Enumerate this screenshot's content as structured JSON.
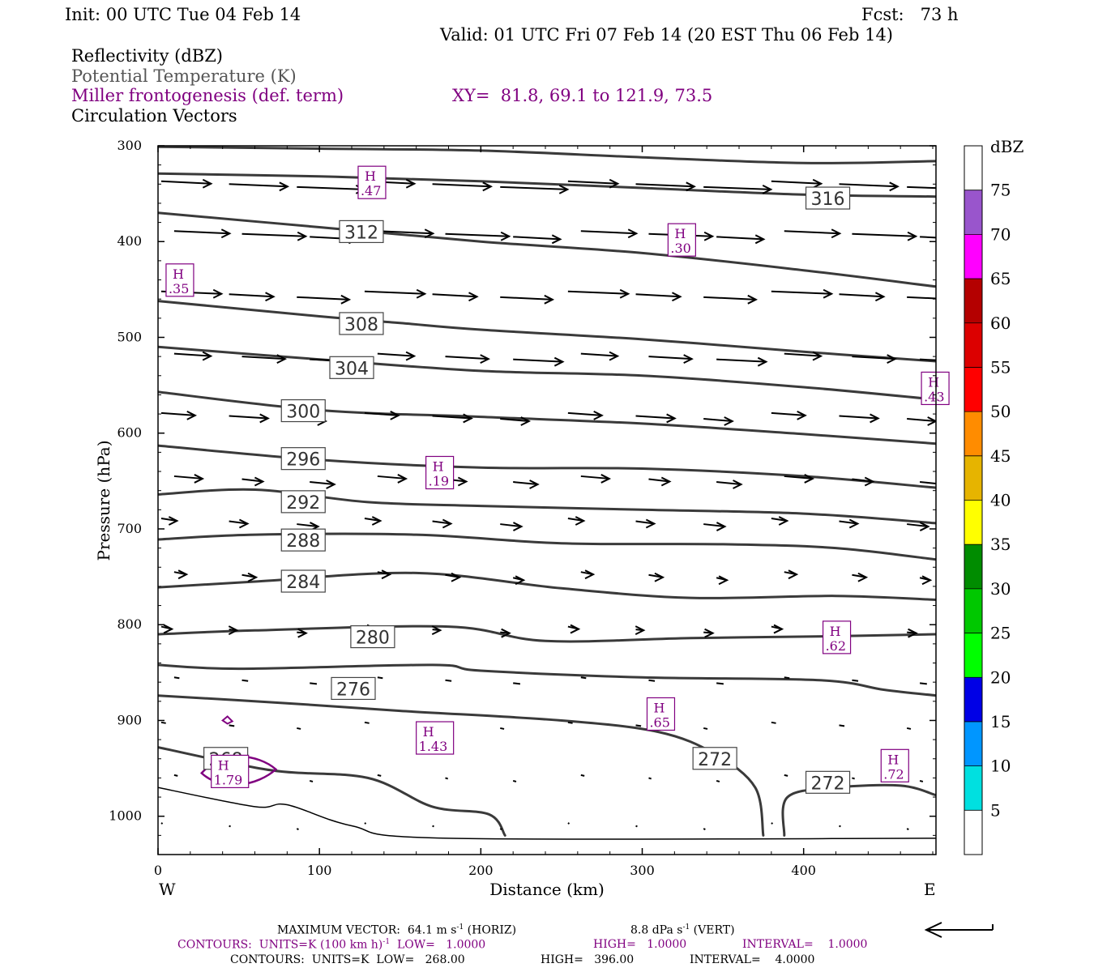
{
  "header": {
    "init": "Init: 00 UTC Tue 04 Feb 14",
    "fcst": "Fcst:   73 h",
    "valid": "Valid: 01 UTC Fri 07 Feb 14 (20 EST Thu 06 Feb 14)",
    "field1": "Reflectivity (dBZ)",
    "field2": "Potential Temperature (K)",
    "field3": "Miller frontogenesis (def. term)",
    "xy": "XY=  81.8, 69.1 to 121.9, 73.5",
    "field4": "Circulation Vectors"
  },
  "colors": {
    "theta": "#3a3a3a",
    "fronto": "#800080",
    "vector": "#000000"
  },
  "chart_data": {
    "type": "contour",
    "xlabel": "Distance (km)",
    "ylabel": "Pressure (hPa)",
    "xlim": [
      0,
      482
    ],
    "ylim": [
      300,
      1040
    ],
    "x_ticks": [
      0,
      100,
      200,
      300,
      400
    ],
    "y_ticks": [
      300,
      400,
      500,
      600,
      700,
      800,
      900,
      1000
    ],
    "west_label": "W",
    "east_label": "E",
    "theta_contours": [
      {
        "value": 316,
        "label": "316",
        "label_at": [
          415,
          355
        ],
        "points": [
          [
            0,
            301
          ],
          [
            100,
            303
          ],
          [
            200,
            305
          ],
          [
            300,
            312
          ],
          [
            400,
            318
          ],
          [
            482,
            316
          ]
        ]
      },
      {
        "value": "",
        "label": "",
        "label_at": null,
        "points": [
          [
            0,
            329
          ],
          [
            100,
            332
          ],
          [
            200,
            337
          ],
          [
            300,
            344
          ],
          [
            400,
            351
          ],
          [
            482,
            353
          ]
        ]
      },
      {
        "value": 312,
        "label": "312",
        "label_at": [
          126,
          390
        ],
        "points": [
          [
            0,
            370
          ],
          [
            100,
            385
          ],
          [
            200,
            400
          ],
          [
            300,
            412
          ],
          [
            400,
            430
          ],
          [
            482,
            447
          ]
        ]
      },
      {
        "value": 308,
        "label": "308",
        "label_at": [
          126,
          486
        ],
        "points": [
          [
            0,
            462
          ],
          [
            100,
            478
          ],
          [
            150,
            485
          ],
          [
            200,
            492
          ],
          [
            300,
            502
          ],
          [
            400,
            515
          ],
          [
            482,
            525
          ]
        ]
      },
      {
        "value": 304,
        "label": "304",
        "label_at": [
          120,
          532
        ],
        "points": [
          [
            0,
            510
          ],
          [
            100,
            523
          ],
          [
            200,
            535
          ],
          [
            300,
            540
          ],
          [
            400,
            552
          ],
          [
            482,
            565
          ]
        ]
      },
      {
        "value": 300,
        "label": "300",
        "label_at": [
          90,
          577
        ],
        "points": [
          [
            0,
            557
          ],
          [
            100,
            576
          ],
          [
            200,
            583
          ],
          [
            300,
            590
          ],
          [
            400,
            601
          ],
          [
            482,
            611
          ]
        ]
      },
      {
        "value": 296,
        "label": "296",
        "label_at": [
          90,
          627
        ],
        "points": [
          [
            0,
            613
          ],
          [
            100,
            628
          ],
          [
            200,
            636
          ],
          [
            300,
            637
          ],
          [
            400,
            645
          ],
          [
            482,
            657
          ]
        ]
      },
      {
        "value": 292,
        "label": "292",
        "label_at": [
          90,
          672
        ],
        "points": [
          [
            0,
            664
          ],
          [
            60,
            659
          ],
          [
            130,
            672
          ],
          [
            200,
            676
          ],
          [
            300,
            680
          ],
          [
            400,
            684
          ],
          [
            482,
            694
          ]
        ]
      },
      {
        "value": 288,
        "label": "288",
        "label_at": [
          90,
          712
        ],
        "points": [
          [
            0,
            711
          ],
          [
            60,
            706
          ],
          [
            160,
            706
          ],
          [
            250,
            715
          ],
          [
            350,
            716
          ],
          [
            420,
            720
          ],
          [
            482,
            732
          ]
        ]
      },
      {
        "value": 284,
        "label": "284",
        "label_at": [
          90,
          755
        ],
        "points": [
          [
            0,
            761
          ],
          [
            60,
            755
          ],
          [
            160,
            746
          ],
          [
            250,
            762
          ],
          [
            330,
            772
          ],
          [
            420,
            770
          ],
          [
            482,
            774
          ]
        ]
      },
      {
        "value": 280,
        "label": "280",
        "label_at": [
          133,
          813
        ],
        "points": [
          [
            0,
            810
          ],
          [
            60,
            806
          ],
          [
            180,
            802
          ],
          [
            240,
            817
          ],
          [
            330,
            814
          ],
          [
            420,
            812
          ],
          [
            482,
            810
          ]
        ]
      },
      {
        "value": 276,
        "label": "276",
        "label_at": [
          121,
          867
        ],
        "points": [
          [
            0,
            842
          ],
          [
            50,
            846
          ],
          [
            170,
            842
          ],
          [
            200,
            848
          ],
          [
            300,
            855
          ],
          [
            410,
            858
          ],
          [
            450,
            868
          ],
          [
            482,
            874
          ]
        ]
      },
      {
        "value": 272,
        "label": "272",
        "label_at": [
          345,
          940
        ],
        "points": [
          [
            0,
            874
          ],
          [
            80,
            882
          ],
          [
            150,
            890
          ],
          [
            250,
            900
          ],
          [
            310,
            912
          ],
          [
            345,
            935
          ],
          [
            370,
            970
          ],
          [
            375,
            1020
          ]
        ]
      },
      {
        "value": 272,
        "label": "272",
        "label_at": [
          415,
          965
        ],
        "points": [
          [
            388,
            1020
          ],
          [
            390,
            980
          ],
          [
            420,
            970
          ],
          [
            460,
            968
          ],
          [
            482,
            978
          ]
        ]
      },
      {
        "value": 268,
        "label": "268",
        "label_at": [
          42,
          940
        ],
        "points": [
          [
            0,
            928
          ],
          [
            70,
            952
          ],
          [
            130,
            960
          ],
          [
            170,
            990
          ],
          [
            205,
            998
          ],
          [
            215,
            1020
          ]
        ]
      },
      {
        "value": "",
        "label": "",
        "label_at": null,
        "points": [
          [
            0,
            970
          ],
          [
            60,
            990
          ],
          [
            80,
            988
          ],
          [
            120,
            1010
          ],
          [
            180,
            1023
          ],
          [
            482,
            1023
          ]
        ]
      }
    ],
    "fronto_maxima": [
      {
        "label": "H",
        "value": ".47",
        "at": [
          125,
          345
        ]
      },
      {
        "label": "H",
        "value": ".30",
        "at": [
          317,
          405
        ]
      },
      {
        "label": "H",
        "value": ".35",
        "at": [
          6,
          447
        ]
      },
      {
        "label": "H",
        "value": ".43",
        "at": [
          474,
          560
        ]
      },
      {
        "label": "H",
        "value": ".19",
        "at": [
          167,
          648
        ]
      },
      {
        "label": "H",
        "value": ".62",
        "at": [
          413,
          820
        ]
      },
      {
        "label": "H",
        "value": ".65",
        "at": [
          304,
          900
        ]
      },
      {
        "label": "H",
        "value": "1.43",
        "at": [
          161,
          925
        ]
      },
      {
        "label": "H",
        "value": ".72",
        "at": [
          449,
          954
        ]
      },
      {
        "label": "H",
        "value": "1.79",
        "at": [
          34,
          960
        ]
      }
    ],
    "vector_rows": [
      {
        "p": 340,
        "len": 38
      },
      {
        "p": 392,
        "len": 36
      },
      {
        "p": 455,
        "len": 34
      },
      {
        "p": 520,
        "len": 28
      },
      {
        "p": 582,
        "len": 22
      },
      {
        "p": 648,
        "len": 16
      },
      {
        "p": 692,
        "len": 12
      },
      {
        "p": 748,
        "len": 8
      },
      {
        "p": 805,
        "len": 6
      },
      {
        "p": 858,
        "len": 4
      },
      {
        "p": 905,
        "len": 3
      },
      {
        "p": 960,
        "len": 2
      },
      {
        "p": 1010,
        "len": 1
      }
    ],
    "colorbar": {
      "unit": "dBZ",
      "labels": [
        "5",
        "10",
        "15",
        "20",
        "25",
        "30",
        "35",
        "40",
        "45",
        "50",
        "55",
        "60",
        "65",
        "70",
        "75"
      ],
      "colors": [
        "#ffffff",
        "#00e0e0",
        "#0096ff",
        "#0000e6",
        "#00ff00",
        "#00c800",
        "#008c00",
        "#ffff00",
        "#e6b400",
        "#ff8c00",
        "#ff0000",
        "#dc0000",
        "#b40000",
        "#ff00ff",
        "#9955cc",
        "#ffffff"
      ]
    }
  },
  "footer": {
    "max_vector_a": "MAXIMUM VECTOR:  64.1 m s",
    "max_vector_a_exp": "-1",
    "max_vector_b": " (HORIZ)",
    "max_vector_c": "8.8 dPa s",
    "max_vector_c_exp": "-1",
    "max_vector_d": " (VERT)",
    "contours1_a": "CONTOURS:  UNITS=K (100 km h)",
    "contours1_exp": "-1",
    "contours1_b": "  LOW=   1.0000",
    "contours1_c": "HIGH=   1.0000",
    "contours1_d": "INTERVAL=    1.0000",
    "contours2_a": "CONTOURS:  UNITS=K  LOW=   268.00",
    "contours2_b": "HIGH=   396.00",
    "contours2_c": "INTERVAL=    4.0000"
  }
}
